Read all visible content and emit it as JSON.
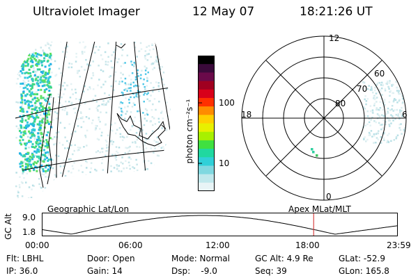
{
  "header": {
    "instrument": "Ultraviolet Imager",
    "date": "12 May 07",
    "time": "18:21:26 UT"
  },
  "panels": {
    "left_label": "Geographic Lat/Lon",
    "right_label": "Apex MLat/MLT"
  },
  "colorbar": {
    "unit_label": "photon cm⁻²s⁻¹",
    "ticks": [
      "100",
      "10"
    ],
    "colors": [
      "#000000",
      "#3a0a3a",
      "#6a0a4a",
      "#a00020",
      "#d8001a",
      "#ff3000",
      "#ff8c00",
      "#ffd000",
      "#e8f000",
      "#a8f000",
      "#40e040",
      "#20d8a0",
      "#30d0d8",
      "#80d8e0",
      "#c0e8ec",
      "#e8f4f6"
    ]
  },
  "polar": {
    "mlt_labels": [
      "12",
      "18",
      "6",
      "0"
    ],
    "mlat_labels": [
      "60",
      "70",
      "80"
    ]
  },
  "alt_plot": {
    "ylabel": "GC Alt",
    "yticks": [
      "9.0",
      "1.8"
    ],
    "xticks": [
      "00:00",
      "06:00",
      "12:00",
      "18:00",
      "23:59"
    ],
    "current_time_hours": 18.36,
    "marker_color": "#d02020"
  },
  "status": {
    "flt": "Flt: LBHL",
    "ip": "IP: 36.0",
    "door": "Door: Open",
    "gain": "Gain: 14",
    "mode": "Mode: Normal",
    "dsp": "Dsp:    -9.0",
    "gcalt": "GC Alt: 4.9 Re",
    "seq": "Seq: 39",
    "glat": "GLat: -52.9",
    "glon": "GLon: 165.8"
  }
}
